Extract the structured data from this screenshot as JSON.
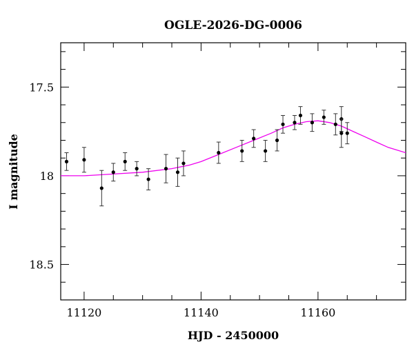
{
  "chart_data": {
    "type": "scatter",
    "title": "OGLE-2026-DG-0006",
    "xlabel": "HJD - 2450000",
    "ylabel": "I magnitude",
    "xlim": [
      11116,
      11175
    ],
    "ylim": [
      18.7,
      17.25
    ],
    "y_inverted": true,
    "grid": false,
    "x_ticks": [
      {
        "value": 11120,
        "label": "11120"
      },
      {
        "value": 11140,
        "label": "11140"
      },
      {
        "value": 11160,
        "label": "11160"
      }
    ],
    "y_ticks": [
      {
        "value": 17.5,
        "label": "17.5"
      },
      {
        "value": 18,
        "label": "18"
      },
      {
        "value": 18.5,
        "label": "18.5"
      }
    ],
    "points": [
      {
        "x": 11117.0,
        "y": 17.92,
        "err": 0.05
      },
      {
        "x": 11120.0,
        "y": 17.91,
        "err": 0.07
      },
      {
        "x": 11123.0,
        "y": 18.07,
        "err": 0.1
      },
      {
        "x": 11125.0,
        "y": 17.98,
        "err": 0.05
      },
      {
        "x": 11127.0,
        "y": 17.92,
        "err": 0.05
      },
      {
        "x": 11129.0,
        "y": 17.96,
        "err": 0.04
      },
      {
        "x": 11131.0,
        "y": 18.02,
        "err": 0.06
      },
      {
        "x": 11134.0,
        "y": 17.96,
        "err": 0.08
      },
      {
        "x": 11136.0,
        "y": 17.98,
        "err": 0.08
      },
      {
        "x": 11137.0,
        "y": 17.93,
        "err": 0.07
      },
      {
        "x": 11143.0,
        "y": 17.87,
        "err": 0.06
      },
      {
        "x": 11147.0,
        "y": 17.86,
        "err": 0.06
      },
      {
        "x": 11149.0,
        "y": 17.79,
        "err": 0.05
      },
      {
        "x": 11151.0,
        "y": 17.86,
        "err": 0.06
      },
      {
        "x": 11153.0,
        "y": 17.8,
        "err": 0.06
      },
      {
        "x": 11154.0,
        "y": 17.71,
        "err": 0.05
      },
      {
        "x": 11156.0,
        "y": 17.7,
        "err": 0.04
      },
      {
        "x": 11157.0,
        "y": 17.66,
        "err": 0.05
      },
      {
        "x": 11159.0,
        "y": 17.7,
        "err": 0.05
      },
      {
        "x": 11161.0,
        "y": 17.67,
        "err": 0.04
      },
      {
        "x": 11163.0,
        "y": 17.71,
        "err": 0.06
      },
      {
        "x": 11164.0,
        "y": 17.68,
        "err": 0.07
      },
      {
        "x": 11164.0,
        "y": 17.76,
        "err": 0.08
      },
      {
        "x": 11165.0,
        "y": 17.76,
        "err": 0.06
      }
    ],
    "model_curve": {
      "color": "#ee00ee",
      "x": [
        11116,
        11120,
        11125,
        11130,
        11135,
        11138,
        11140,
        11143,
        11146,
        11149,
        11152,
        11154,
        11156,
        11158,
        11160,
        11162,
        11164,
        11166,
        11168,
        11170,
        11172,
        11175
      ],
      "y": [
        18.0,
        18.0,
        17.99,
        17.98,
        17.96,
        17.94,
        17.92,
        17.88,
        17.84,
        17.8,
        17.76,
        17.73,
        17.71,
        17.695,
        17.69,
        17.7,
        17.72,
        17.75,
        17.78,
        17.81,
        17.84,
        17.87
      ]
    },
    "point_color": "#000000",
    "errorbar_color": "#333333"
  }
}
